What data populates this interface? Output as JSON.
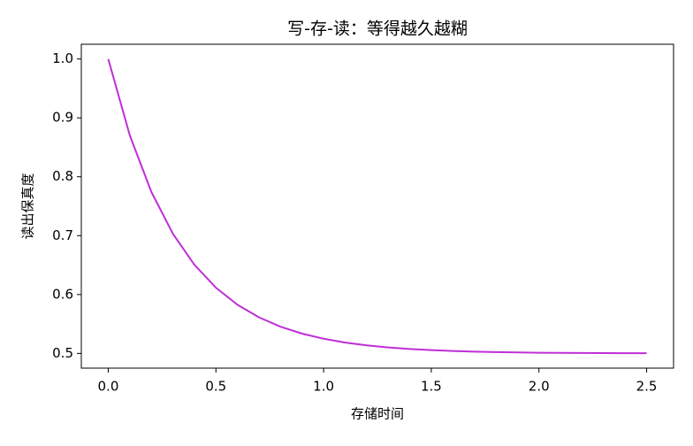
{
  "chart_data": {
    "type": "line",
    "title": "写-存-读：等得越久越糊",
    "x_label": "存储时间",
    "y_label": "读出保真度",
    "x": [
      0,
      0.1,
      0.2,
      0.3,
      0.4,
      0.5,
      0.6,
      0.7,
      0.8,
      0.9,
      1.0,
      1.1,
      1.2,
      1.3,
      1.4,
      1.5,
      1.6,
      1.7,
      1.8,
      1.9,
      2.0,
      2.1,
      2.2,
      2.3,
      2.4,
      2.5
    ],
    "values": [
      1.0,
      0.8704,
      0.7744,
      0.7033,
      0.6506,
      0.6116,
      0.5826,
      0.5612,
      0.5454,
      0.5336,
      0.5249,
      0.5184,
      0.5137,
      0.5101,
      0.5075,
      0.5056,
      0.5041,
      0.503,
      0.5023,
      0.5017,
      0.5012,
      0.5009,
      0.5007,
      0.5005,
      0.5004,
      0.5003
    ],
    "color": "#bf2fd6",
    "xlim": [
      -0.125,
      2.625
    ],
    "xticks": [
      {
        "value": 0,
        "label": "0.0"
      },
      0.5,
      {
        "value": 1,
        "label": "1.0"
      },
      1.5,
      {
        "value": 2,
        "label": "2.0"
      },
      2.5
    ],
    "ylim": [
      0.475,
      1.025
    ],
    "yticks": [
      0.5,
      0.6,
      0.7,
      0.8,
      0.9,
      {
        "value": 1,
        "label": "1.0"
      }
    ],
    "grid": false
  }
}
